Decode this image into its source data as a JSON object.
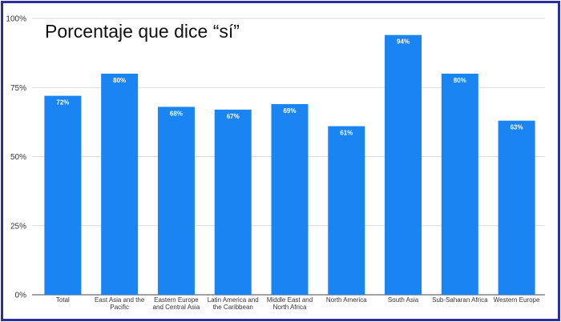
{
  "chart_data": {
    "type": "bar",
    "title": "Porcentaje que dice “sí”",
    "xlabel": "",
    "ylabel": "",
    "ylim": [
      0,
      100
    ],
    "yticks": [
      {
        "value": 0,
        "label": "0%"
      },
      {
        "value": 25,
        "label": "25%"
      },
      {
        "value": 50,
        "label": "50%"
      },
      {
        "value": 75,
        "label": "75%"
      },
      {
        "value": 100,
        "label": "100%"
      }
    ],
    "grid": true,
    "legend": "none",
    "bar_color": "#1a84f2",
    "categories": [
      [
        "Total"
      ],
      [
        "East Asia and the",
        "Pacific"
      ],
      [
        "Eastern Europe",
        "and Central Asia"
      ],
      [
        "Latin America and",
        "the Caribbean"
      ],
      [
        "Middle East and",
        "North Africa"
      ],
      [
        "North America"
      ],
      [
        "South Asia"
      ],
      [
        "Sub-Saharan Africa"
      ],
      [
        "Western Europe"
      ]
    ],
    "values": [
      72,
      80,
      68,
      67,
      69,
      61,
      94,
      80,
      63
    ],
    "data_labels": [
      "72%",
      "80%",
      "68%",
      "67%",
      "69%",
      "61%",
      "94%",
      "80%",
      "63%"
    ]
  }
}
